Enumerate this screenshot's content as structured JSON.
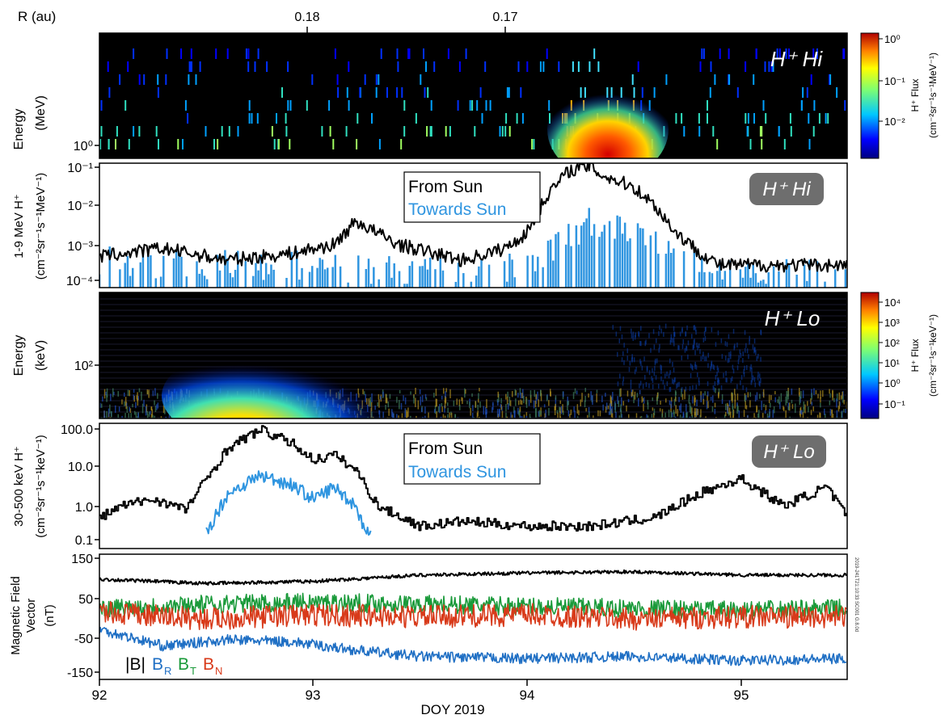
{
  "figure": {
    "r_axis_label": "R (au)",
    "r_ticks": [
      "0.18",
      "0.17"
    ],
    "x_axis_title": "DOY 2019",
    "x_ticks": [
      "92",
      "93",
      "94",
      "95"
    ],
    "x_range": [
      92,
      95.5
    ],
    "vertical_stamp": "2019-241T21:10:33 SC001 G.8.0d"
  },
  "panels": [
    {
      "id": "hi-spectrogram",
      "ylabel": [
        "Energy",
        "(MeV)"
      ],
      "y_tick_label": "10⁰",
      "tag": "H⁺ Hi",
      "colorbar": {
        "ticks": [
          "10⁰",
          "10⁻¹",
          "10⁻²"
        ],
        "label": "H⁺ Flux",
        "units": "(cm⁻²sr⁻¹s⁻¹MeV⁻¹)"
      }
    },
    {
      "id": "hi-flux",
      "ylabel": [
        "1-9 MeV H⁺",
        "(cm⁻²sr⁻¹s⁻¹MeV⁻¹)"
      ],
      "y_tick_labels": [
        "10⁻¹",
        "10⁻²",
        "10⁻³",
        "10⁻⁴"
      ],
      "legend": [
        "From Sun",
        "Towards Sun"
      ],
      "tag": "H⁺ Hi"
    },
    {
      "id": "lo-spectrogram",
      "ylabel": [
        "Energy",
        "(keV)"
      ],
      "y_tick_label": "10²",
      "tag": "H⁺ Lo",
      "colorbar": {
        "ticks": [
          "10⁴",
          "10³",
          "10²",
          "10¹",
          "10⁰",
          "10⁻¹"
        ],
        "label": "H⁺ Flux",
        "units": "(cm⁻²sr⁻¹s⁻¹keV⁻¹)"
      }
    },
    {
      "id": "lo-flux",
      "ylabel": [
        "30-500 keV H⁺",
        "(cm⁻²sr⁻¹s⁻¹keV⁻¹)"
      ],
      "y_tick_labels": [
        "100.0",
        "10.0",
        "1.0",
        "0.1"
      ],
      "legend": [
        "From Sun",
        "Towards Sun"
      ],
      "tag": "H⁺ Lo"
    },
    {
      "id": "mag",
      "ylabel": [
        "Magnetic Field",
        "Vector",
        "(nT)"
      ],
      "y_tick_labels": [
        "150",
        "50",
        "-50",
        "-150"
      ],
      "legend": [
        "|B|",
        "B",
        "R",
        "B",
        "T",
        "B",
        "N"
      ]
    }
  ],
  "colors": {
    "from_sun": "#000000",
    "towards_sun": "#2f95e0",
    "B_mag": "#000000",
    "B_R": "#1f6fc4",
    "B_T": "#1a9a3a",
    "B_N": "#d83a1a",
    "tag_bg": "#6e6e6e"
  },
  "chart_data": [
    {
      "type": "heatmap",
      "panel": "H⁺ Hi",
      "x_range": [
        92,
        95.5
      ],
      "y_scale": "log",
      "y_unit": "MeV",
      "z_label": "H⁺ Flux",
      "z_scale": "log",
      "z_range": [
        0.002,
        1.5
      ],
      "features": [
        {
          "x": [
            94.15,
            94.5
          ],
          "description": "intense event"
        }
      ]
    },
    {
      "type": "line",
      "panel": "H⁺ Hi",
      "y_scale": "log",
      "ylim": [
        0.0001,
        0.1
      ],
      "series": [
        {
          "name": "From Sun",
          "x": [
            92.0,
            92.3,
            92.6,
            92.9,
            93.1,
            93.2,
            93.4,
            93.7,
            93.9,
            94.0,
            94.1,
            94.2,
            94.3,
            94.35,
            94.5,
            94.6,
            94.7,
            94.8,
            94.9
          ],
          "values": [
            0.0005,
            0.0008,
            0.0004,
            0.0006,
            0.001,
            0.004,
            0.001,
            0.0004,
            0.0008,
            0.002,
            0.02,
            0.08,
            0.1,
            0.06,
            0.03,
            0.01,
            0.002,
            0.0007,
            0.0003
          ]
        },
        {
          "name": "Towards Sun",
          "x": [
            92.0,
            92.5,
            93.0,
            93.5,
            94.0,
            94.15,
            94.3,
            94.45,
            94.6,
            94.8,
            95.0,
            95.3
          ],
          "values": [
            0.0004,
            0.0003,
            0.0003,
            0.0002,
            0.0003,
            0.001,
            0.004,
            0.003,
            0.001,
            0.0004,
            0.0002,
            0.0002
          ]
        }
      ]
    },
    {
      "type": "heatmap",
      "panel": "H⁺ Lo",
      "x_range": [
        92,
        95.5
      ],
      "y_scale": "log",
      "y_unit": "keV",
      "z_label": "H⁺ Flux",
      "z_scale": "log",
      "z_range": [
        0.05,
        30000
      ],
      "features": [
        {
          "x": [
            92.45,
            93.3
          ],
          "description": "intense low-energy event"
        }
      ]
    },
    {
      "type": "line",
      "panel": "H⁺ Lo",
      "y_scale": "log",
      "ylim": [
        0.1,
        100
      ],
      "series": [
        {
          "name": "From Sun",
          "x": [
            92.0,
            92.1,
            92.25,
            92.4,
            92.5,
            92.6,
            92.75,
            92.9,
            93.0,
            93.1,
            93.2,
            93.3,
            93.5,
            93.7,
            94.0,
            94.3,
            94.6,
            94.8,
            95.0,
            95.2,
            95.4,
            95.5
          ],
          "values": [
            0.5,
            1.0,
            1.5,
            0.8,
            5.0,
            30.0,
            90.0,
            40.0,
            15.0,
            20.0,
            8.0,
            1.0,
            0.3,
            0.4,
            0.3,
            0.3,
            0.5,
            2.0,
            5.0,
            1.0,
            3.0,
            0.5
          ]
        },
        {
          "name": "Towards Sun",
          "x": [
            92.5,
            92.6,
            92.75,
            92.9,
            93.0,
            93.1,
            93.2,
            93.25
          ],
          "values": [
            0.2,
            2.0,
            6.0,
            3.5,
            1.5,
            3.0,
            1.0,
            0.2
          ]
        }
      ]
    },
    {
      "type": "line",
      "panel": "Magnetic Field",
      "ylim": [
        -150,
        150
      ],
      "y_unit": "nT",
      "series": [
        {
          "name": "|B|",
          "x": [
            92.0,
            92.5,
            93.0,
            93.5,
            94.0,
            94.5,
            95.0,
            95.5
          ],
          "values": [
            90,
            80,
            85,
            100,
            105,
            108,
            100,
            100
          ]
        },
        {
          "name": "B_R",
          "x": [
            92.0,
            92.3,
            92.6,
            92.9,
            93.2,
            93.5,
            94.0,
            94.5,
            95.0,
            95.5
          ],
          "values": [
            -30,
            -70,
            -55,
            -60,
            -80,
            -95,
            -100,
            -95,
            -105,
            -100
          ]
        },
        {
          "name": "B_T",
          "x": [
            92.0,
            92.5,
            93.0,
            93.5,
            94.0,
            94.5,
            95.0,
            95.5
          ],
          "values": [
            20,
            30,
            35,
            30,
            25,
            20,
            15,
            20
          ]
        },
        {
          "name": "B_N",
          "x": [
            92.0,
            92.5,
            93.0,
            93.5,
            94.0,
            94.5,
            95.0,
            95.5
          ],
          "values": [
            10,
            -5,
            5,
            0,
            5,
            -5,
            0,
            0
          ]
        }
      ]
    }
  ]
}
